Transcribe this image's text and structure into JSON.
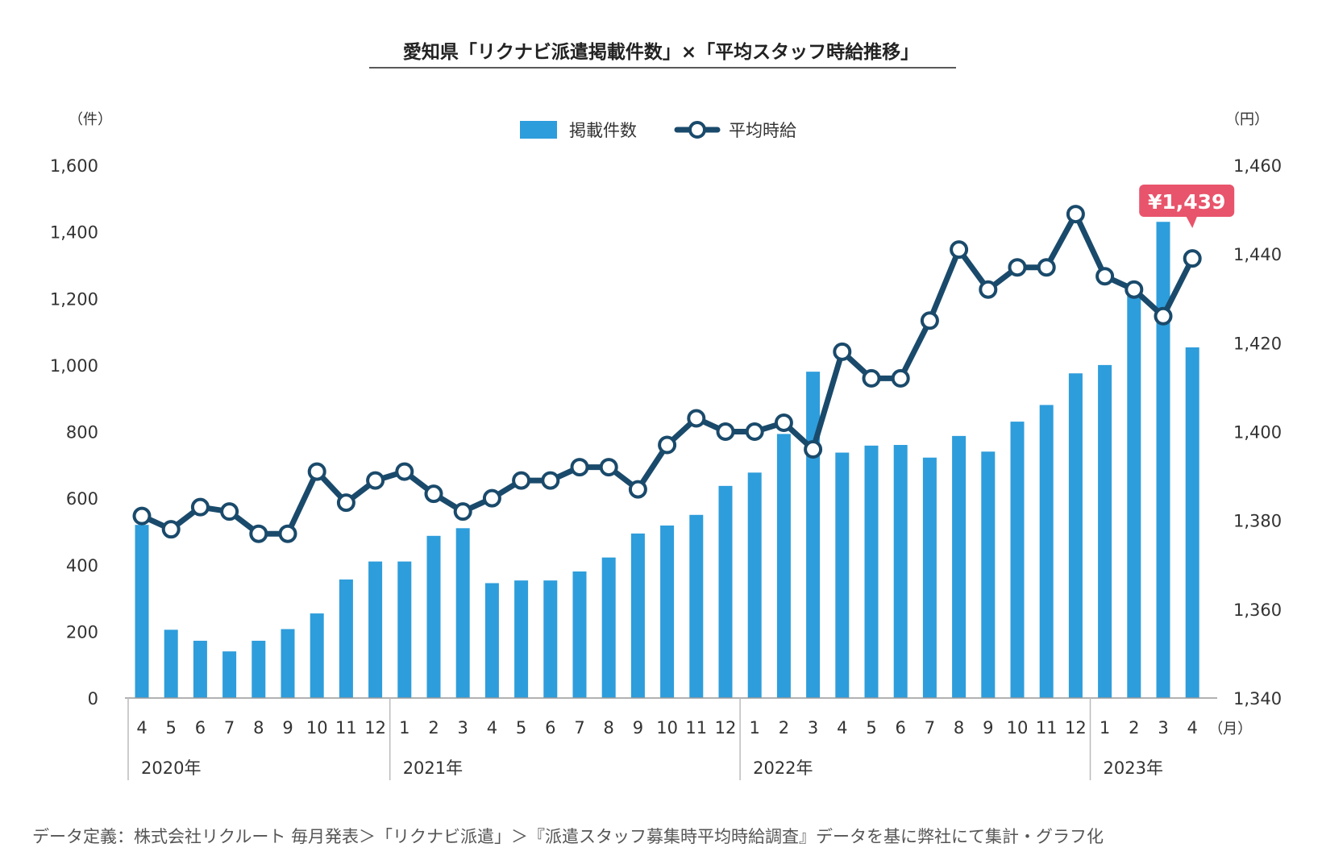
{
  "chart_data": {
    "type": "bar+line",
    "title": "愛知県「リクナビ派遣掲載件数」×「平均スタッフ時給推移」",
    "left_axis": {
      "unit": "（件）",
      "min": 0,
      "max": 1600,
      "ticks": [
        0,
        200,
        400,
        600,
        800,
        1000,
        1200,
        1400,
        1600
      ],
      "tick_labels": [
        "0",
        "200",
        "400",
        "600",
        "800",
        "1,000",
        "1,200",
        "1,400",
        "1,600"
      ]
    },
    "right_axis": {
      "unit": "（円）",
      "min": 1340,
      "max": 1460,
      "ticks": [
        1340,
        1360,
        1380,
        1400,
        1420,
        1440,
        1460
      ],
      "tick_labels": [
        "1,340",
        "1,360",
        "1,380",
        "1,400",
        "1,420",
        "1,440",
        "1,460"
      ]
    },
    "categories": [
      "4",
      "5",
      "6",
      "7",
      "8",
      "9",
      "10",
      "11",
      "12",
      "1",
      "2",
      "3",
      "4",
      "5",
      "6",
      "7",
      "8",
      "9",
      "10",
      "11",
      "12",
      "1",
      "2",
      "3",
      "4",
      "5",
      "6",
      "7",
      "8",
      "9",
      "10",
      "11",
      "12",
      "1",
      "2",
      "3",
      "4"
    ],
    "month_unit": "（月）",
    "years": [
      {
        "label": "2020年",
        "start_index": 0
      },
      {
        "label": "2021年",
        "start_index": 9
      },
      {
        "label": "2022年",
        "start_index": 21
      },
      {
        "label": "2023年",
        "start_index": 33
      }
    ],
    "series": [
      {
        "name": "掲載件数",
        "type": "bar",
        "axis": "left",
        "color": "#2e9ddb",
        "values": [
          520,
          205,
          172,
          140,
          172,
          207,
          254,
          356,
          410,
          410,
          487,
          510,
          345,
          353,
          353,
          380,
          422,
          494,
          518,
          550,
          637,
          677,
          793,
          980,
          737,
          758,
          760,
          722,
          787,
          740,
          830,
          880,
          975,
          1000,
          1230,
          1430,
          1053
        ]
      },
      {
        "name": "平均時給",
        "type": "line",
        "axis": "right",
        "color": "#1a4a6b",
        "values": [
          1381,
          1378,
          1383,
          1382,
          1377,
          1377,
          1391,
          1384,
          1389,
          1391,
          1386,
          1382,
          1385,
          1389,
          1389,
          1392,
          1392,
          1387,
          1397,
          1403,
          1400,
          1400,
          1402,
          1396,
          1418,
          1412,
          1412,
          1425,
          1441,
          1432,
          1437,
          1437,
          1449,
          1435,
          1432,
          1426,
          1439
        ]
      }
    ],
    "callout": {
      "label": "¥1,439",
      "color": "#e8546b"
    },
    "legend_placement": "top-center",
    "grid": false
  },
  "footer": "データ定義：株式会社リクルート 毎月発表＞「リクナビ派遣」＞『派遣スタッフ募集時平均時給調査』データを基に弊社にて集計・グラフ化"
}
